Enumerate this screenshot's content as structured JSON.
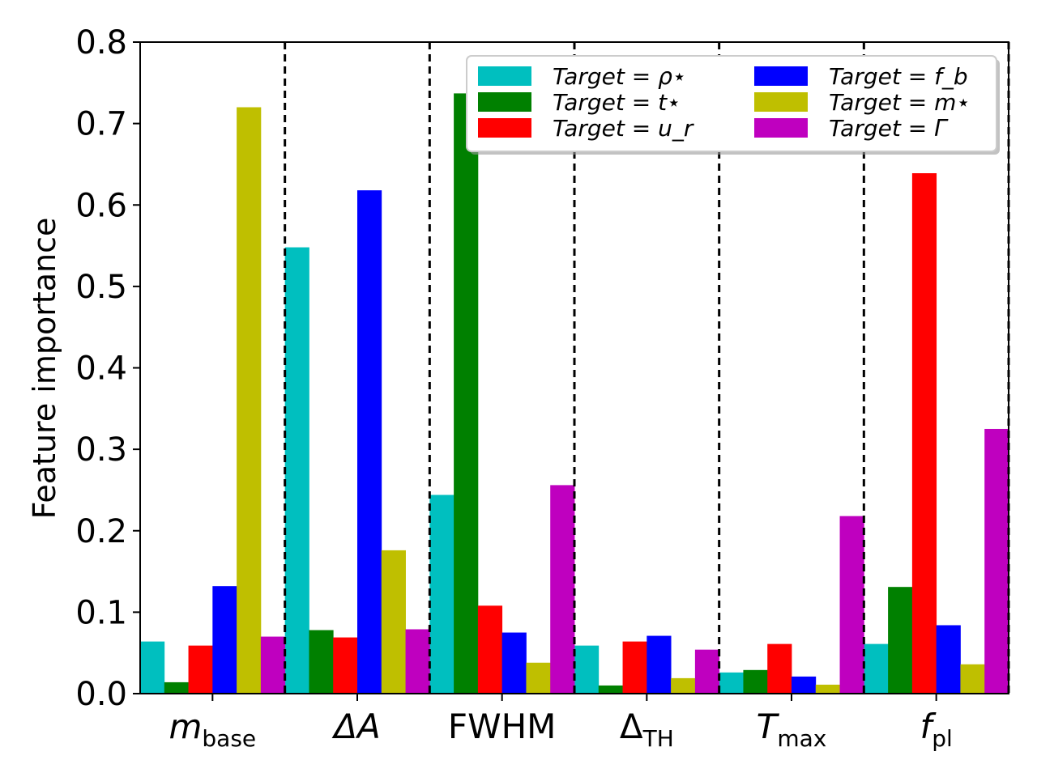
{
  "chart_data": {
    "type": "bar",
    "categories": [
      "m_base",
      "ΔA",
      "FWHM",
      "Δ_TH",
      "T_max",
      "f_pl"
    ],
    "category_labels": [
      {
        "main": "m",
        "sub": "base",
        "italic": true
      },
      {
        "main": "ΔA",
        "sub": "",
        "italic": true
      },
      {
        "main": "FWHM",
        "sub": "",
        "italic": false
      },
      {
        "main": "Δ",
        "sub": "TH",
        "italic": false
      },
      {
        "main": "T",
        "sub": "max",
        "italic": true
      },
      {
        "main": "f",
        "sub": "pl",
        "italic": true
      }
    ],
    "series": [
      {
        "name": "Target = ρ⋆",
        "color": "#00bfbf",
        "values": [
          0.064,
          0.548,
          0.244,
          0.059,
          0.026,
          0.061
        ]
      },
      {
        "name": "Target = t⋆",
        "color": "#008000",
        "values": [
          0.014,
          0.078,
          0.737,
          0.01,
          0.029,
          0.131
        ]
      },
      {
        "name": "Target = u_r",
        "color": "#ff0000",
        "values": [
          0.059,
          0.069,
          0.108,
          0.064,
          0.061,
          0.639
        ]
      },
      {
        "name": "Target = f_b",
        "color": "#0000ff",
        "values": [
          0.132,
          0.618,
          0.075,
          0.071,
          0.021,
          0.084
        ]
      },
      {
        "name": "Target = m⋆",
        "color": "#bfbf00",
        "values": [
          0.72,
          0.176,
          0.038,
          0.019,
          0.011,
          0.036
        ]
      },
      {
        "name": "Target = Γ",
        "color": "#bf00bf",
        "values": [
          0.07,
          0.079,
          0.256,
          0.054,
          0.218,
          0.325
        ]
      }
    ],
    "title": "",
    "xlabel": "",
    "ylabel": "Feature importance",
    "ylim": [
      0,
      0.8
    ],
    "yticks": [
      0.0,
      0.1,
      0.2,
      0.3,
      0.4,
      0.5,
      0.6,
      0.7,
      0.8
    ],
    "ytick_labels": [
      "0.0",
      "0.1",
      "0.2",
      "0.3",
      "0.4",
      "0.5",
      "0.6",
      "0.7",
      "0.8"
    ],
    "group_separators": "dashed",
    "grid": false,
    "legend_position": "top-right",
    "legend_columns": 2
  }
}
